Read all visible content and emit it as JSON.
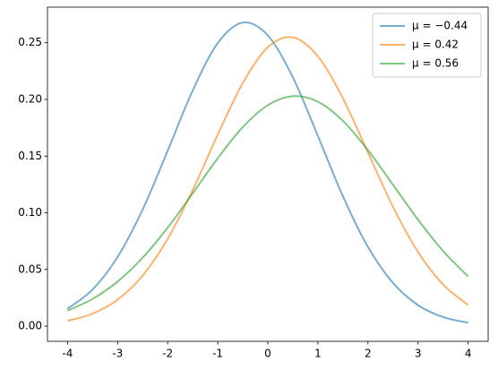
{
  "chart_data": {
    "type": "line",
    "x": [
      -4,
      -3.5,
      -3,
      -2.5,
      -2,
      -1.5,
      -1,
      -0.5,
      0,
      0.5,
      1,
      1.5,
      2,
      2.5,
      3,
      3.5,
      4
    ],
    "series": [
      {
        "name": "μ = −0.44",
        "color": "#1f77b4",
        "values": [
          0.0153,
          0.0323,
          0.061,
          0.1028,
          0.1547,
          0.2079,
          0.2497,
          0.2678,
          0.2565,
          0.2195,
          0.1678,
          0.1145,
          0.0699,
          0.0381,
          0.0185,
          0.008,
          0.0031
        ]
      },
      {
        "name": "μ = 0.42",
        "color": "#ff7f0e",
        "values": [
          0.0047,
          0.011,
          0.0233,
          0.0446,
          0.077,
          0.12,
          0.1689,
          0.2145,
          0.246,
          0.2547,
          0.238,
          0.2009,
          0.1531,
          0.1053,
          0.0654,
          0.0367,
          0.0186
        ]
      },
      {
        "name": "μ = 0.56",
        "color": "#2ca02c",
        "values": [
          0.0137,
          0.024,
          0.0393,
          0.0604,
          0.0869,
          0.1172,
          0.1481,
          0.1755,
          0.1949,
          0.2029,
          0.198,
          0.1811,
          0.1552,
          0.1247,
          0.0939,
          0.0663,
          0.0438
        ]
      }
    ],
    "xlim": [
      -4.4,
      4.4
    ],
    "xticks": [
      -4,
      -3,
      -2,
      -1,
      0,
      1,
      2,
      3,
      4
    ],
    "ylim": [
      -0.0134,
      0.2814
    ],
    "yticks": [
      {
        "value": 0,
        "label": "0.00"
      },
      0.05,
      {
        "value": 0.1,
        "label": "0.10"
      },
      0.15,
      {
        "value": 0.2,
        "label": "0.20"
      },
      0.25
    ],
    "legend": "upper right",
    "line_opacity": 0.6
  }
}
